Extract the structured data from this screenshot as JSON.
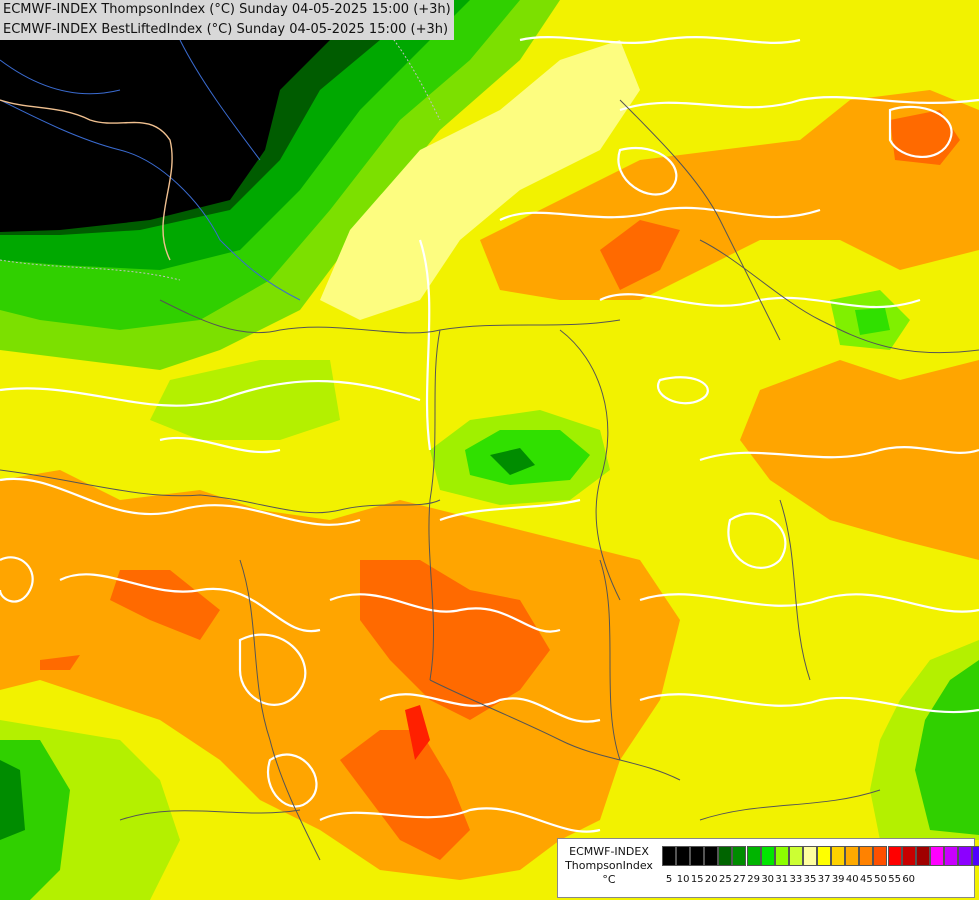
{
  "header": {
    "line1": "ECMWF-INDEX ThompsonIndex (°C) Sunday 04-05-2025 15:00 (+3h)",
    "line2": "ECMWF-INDEX BestLiftedIndex (°C) Sunday 04-05-2025 15:00 (+3h)"
  },
  "legend": {
    "title_line1": "ECMWF-INDEX",
    "title_line2": "ThompsonIndex",
    "unit": "°C",
    "ticks": [
      "5",
      "10",
      "15",
      "20",
      "25",
      "27",
      "29",
      "30",
      "31",
      "33",
      "35",
      "37",
      "39",
      "40",
      "45",
      "50",
      "55",
      "60"
    ],
    "colors": [
      "#000000",
      "#000000",
      "#000000",
      "#000000",
      "#006400",
      "#008c00",
      "#00b400",
      "#00e600",
      "#8cff00",
      "#ccff33",
      "#ffffa0",
      "#ffff00",
      "#ffd200",
      "#ffaa00",
      "#ff8200",
      "#ff5000",
      "#ff0000",
      "#c80000",
      "#a00000",
      "#ff00ff",
      "#c800ff",
      "#8c00ff",
      "#5000ff",
      "#0000ff"
    ]
  },
  "palette": {
    "black": "#000000",
    "dark_green": "#006400",
    "green": "#00c000",
    "bright_green": "#3cf000",
    "lime": "#a0ff00",
    "pale_yellow": "#ffff90",
    "yellow": "#f5f500",
    "gold": "#ffd200",
    "orange": "#ffa500",
    "dark_orange": "#ff6a00",
    "red": "#ff2000",
    "contour": "#ffffff",
    "borders": "#555555"
  }
}
